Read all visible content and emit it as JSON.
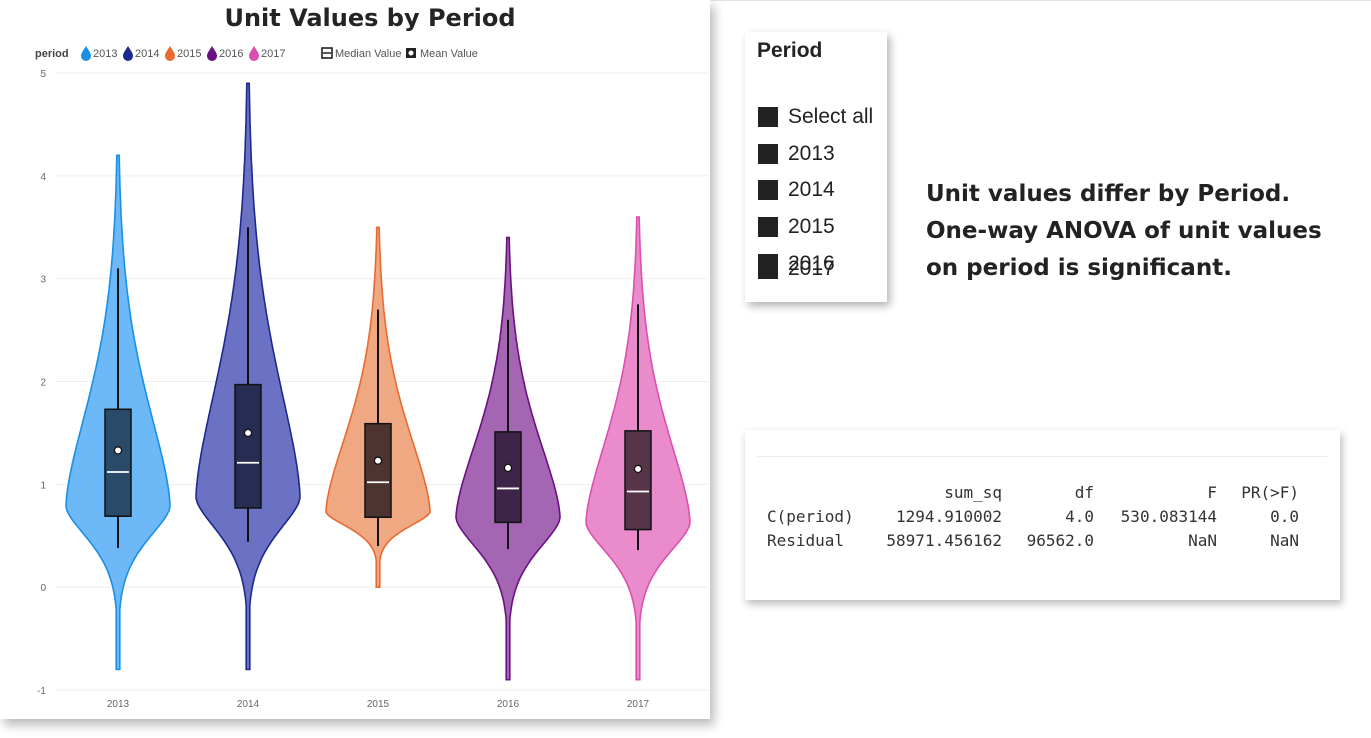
{
  "chart_data": {
    "type": "violin",
    "title": "Unit Values by Period",
    "legend": {
      "title": "period",
      "placement": "top-left",
      "items": [
        "2013",
        "2014",
        "2015",
        "2016",
        "2017"
      ],
      "extra": [
        "Median Value",
        "Mean Value"
      ]
    },
    "y_ticks": [
      "5",
      "4",
      "3",
      "2",
      "1",
      "0",
      "-1"
    ],
    "ylim": [
      -1,
      5
    ],
    "grid": true,
    "series": [
      {
        "name": "2013",
        "color": "#1a8fe6",
        "fill": "#6db9f8",
        "box_fill": "#2a4a6a",
        "min": -0.8,
        "max": 4.2,
        "q1": 0.69,
        "median": 1.12,
        "q3": 1.73,
        "mean": 1.33,
        "whisker_low": 0.38,
        "whisker_high": 3.1
      },
      {
        "name": "2014",
        "color": "#1c2a8f",
        "fill": "#6b72c4",
        "box_fill": "#272c52",
        "min": -0.8,
        "max": 4.9,
        "q1": 0.77,
        "median": 1.21,
        "q3": 1.97,
        "mean": 1.5,
        "whisker_low": 0.44,
        "whisker_high": 3.5
      },
      {
        "name": "2015",
        "color": "#e86a30",
        "fill": "#f0a882",
        "box_fill": "#4d3430",
        "min": 0.0,
        "max": 3.5,
        "q1": 0.68,
        "median": 1.02,
        "q3": 1.59,
        "mean": 1.23,
        "whisker_low": 0.4,
        "whisker_high": 2.7
      },
      {
        "name": "2016",
        "color": "#6a1080",
        "fill": "#a465b3",
        "box_fill": "#3d2448",
        "min": -0.9,
        "max": 3.4,
        "q1": 0.63,
        "median": 0.96,
        "q3": 1.51,
        "mean": 1.16,
        "whisker_low": 0.37,
        "whisker_high": 2.6
      },
      {
        "name": "2017",
        "color": "#dc4fb0",
        "fill": "#ea8ccb",
        "box_fill": "#583448",
        "min": -0.9,
        "max": 3.6,
        "q1": 0.56,
        "median": 0.93,
        "q3": 1.52,
        "mean": 1.15,
        "whisker_low": 0.36,
        "whisker_high": 2.75
      }
    ]
  },
  "slicer": {
    "title": "Period",
    "items": [
      "Select all",
      "2013",
      "2014",
      "2015",
      "2016",
      "2017"
    ]
  },
  "insight": {
    "line1": "Unit values differ by Period.",
    "line2": "One-way ANOVA of unit values",
    "line3": "on period is significant."
  },
  "anova": {
    "headers": [
      "",
      "sum_sq",
      "df",
      "F",
      "PR(>F)"
    ],
    "rows": [
      [
        "C(period)",
        "1294.910002",
        "4.0",
        "530.083144",
        "0.0"
      ],
      [
        "Residual",
        "58971.456162",
        "96562.0",
        "NaN",
        "NaN"
      ]
    ]
  }
}
